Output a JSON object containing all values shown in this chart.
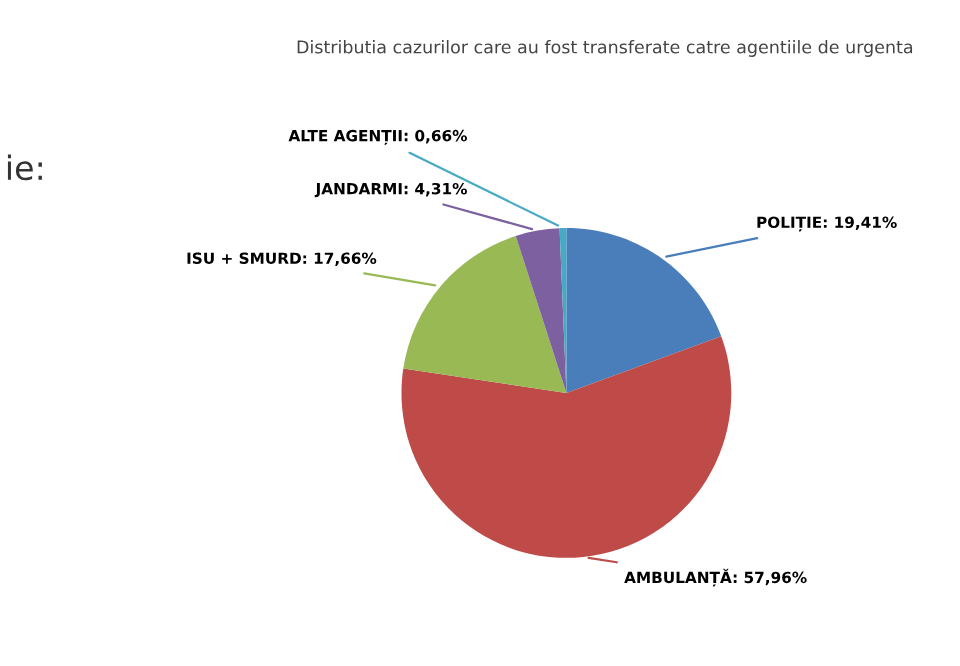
{
  "chart_data": {
    "type": "pie",
    "title": "Distributia cazurilor care au fost transferate catre agentiile de urgenta",
    "categories": [
      "POLIȚIE",
      "AMBULANȚĂ",
      "ISU + SMURD",
      "JANDARMI",
      "ALTE AGENȚII"
    ],
    "values": [
      19.41,
      57.96,
      17.66,
      4.31,
      0.66
    ],
    "value_labels": [
      "19,41%",
      "57,96%",
      "17,66%",
      "4,31%",
      "0,66%"
    ],
    "colors": [
      "#4a7ebb",
      "#be4b48",
      "#98b954",
      "#7d60a0",
      "#46aac5"
    ],
    "annotations": [
      "ie:"
    ],
    "legend": false
  }
}
